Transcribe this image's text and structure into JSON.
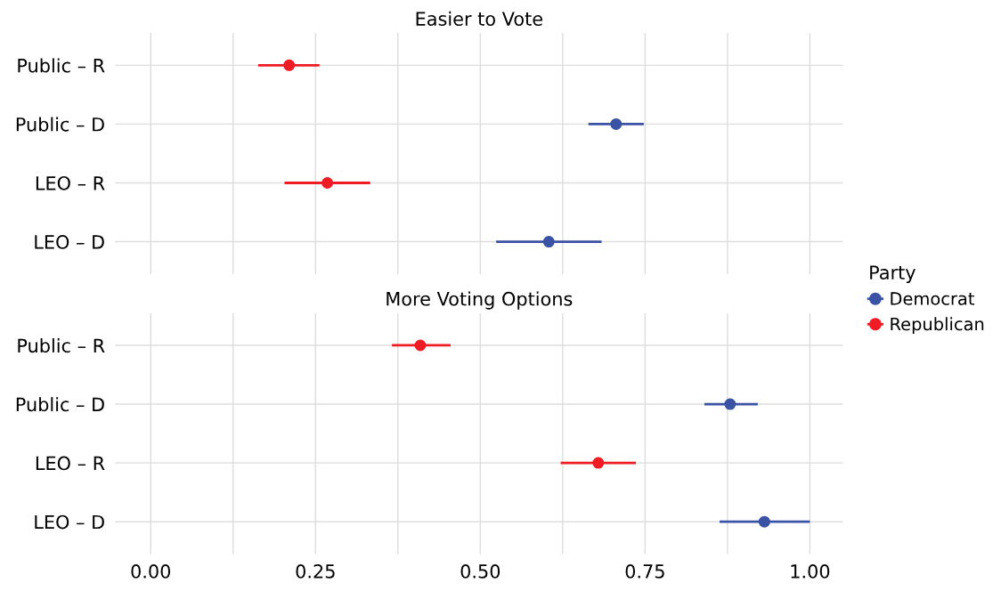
{
  "chart_data": [
    {
      "type": "scatter",
      "orientation": "horizontal",
      "title": "Easier to Vote",
      "categories": [
        "Public – R",
        "Public – D",
        "LEO – R",
        "LEO – D"
      ],
      "series": [
        {
          "name": "Democrat",
          "color": "#3a53a4",
          "values": [
            null,
            0.706,
            null,
            0.604
          ],
          "errors": [
            null,
            [
              0.664,
              0.748
            ],
            null,
            [
              0.524,
              0.684
            ]
          ]
        },
        {
          "name": "Republican",
          "color": "#ee1c25",
          "values": [
            0.21,
            null,
            0.268,
            null
          ],
          "errors": [
            [
              0.163,
              0.256
            ],
            null,
            [
              0.203,
              0.333
            ],
            null
          ]
        }
      ],
      "xlim": [
        -0.054,
        1.05
      ],
      "xticks": [
        {
          "value": 0,
          "label": null
        },
        {
          "value": 0.125,
          "label": null
        },
        {
          "value": 0.25,
          "label": null
        },
        {
          "value": 0.375,
          "label": null
        },
        {
          "value": 0.5,
          "label": null
        },
        {
          "value": 0.625,
          "label": null
        },
        {
          "value": 0.75,
          "label": null
        },
        {
          "value": 0.875,
          "label": null
        },
        {
          "value": 1,
          "label": null
        }
      ],
      "tick_labels": "y",
      "grid": true,
      "marker": "circle",
      "legend": "right",
      "legend_title": "Party"
    },
    {
      "type": "scatter",
      "orientation": "horizontal",
      "title": "More Voting Options",
      "categories": [
        "Public – R",
        "Public – D",
        "LEO – R",
        "LEO – D"
      ],
      "series": [
        {
          "color": "#3a53a4",
          "values": [
            null,
            0.879,
            null,
            0.931
          ],
          "errors": [
            null,
            [
              0.84,
              0.921
            ],
            null,
            [
              0.863,
              1.0
            ]
          ]
        },
        {
          "color": "#ee1c25",
          "values": [
            0.409,
            null,
            0.679,
            null
          ],
          "errors": [
            [
              0.366,
              0.455
            ],
            null,
            [
              0.622,
              0.736
            ],
            null
          ]
        }
      ],
      "xlim": [
        -0.054,
        1.05
      ],
      "xticks": [
        {
          "value": 0,
          "label": "0.00"
        },
        {
          "value": 0.125,
          "label": null
        },
        {
          "value": 0.25,
          "label": "0.25"
        },
        {
          "value": 0.375,
          "label": null
        },
        {
          "value": 0.5,
          "label": "0.50"
        },
        {
          "value": 0.625,
          "label": null
        },
        {
          "value": 0.75,
          "label": "0.75"
        },
        {
          "value": 0.875,
          "label": null
        },
        {
          "value": 1,
          "label": "1.00"
        }
      ],
      "grid": true,
      "marker": "circle"
    }
  ]
}
